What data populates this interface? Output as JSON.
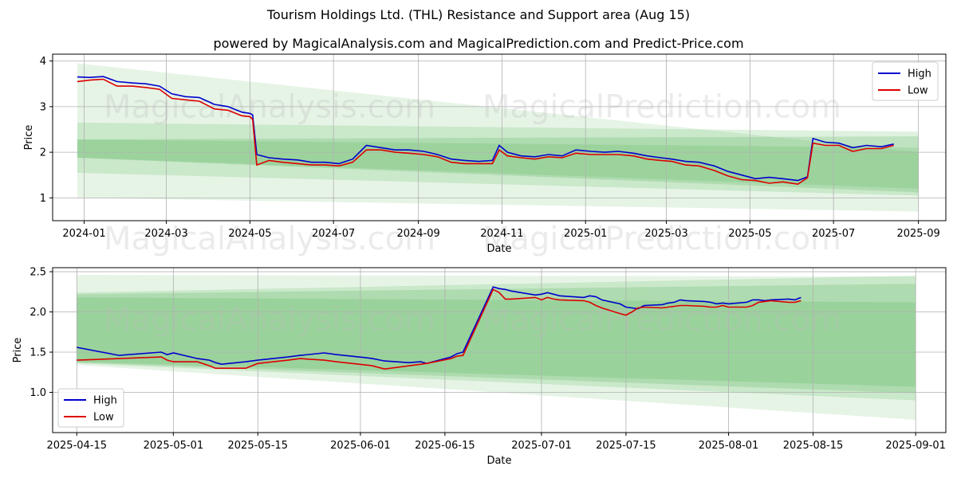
{
  "title": "Tourism Holdings Ltd. (THL) Resistance and Support area (Aug 15)",
  "subtitle": "powered by MagicalAnalysis.com and MagicalPrediction.com and Predict-Price.com",
  "watermarks": [
    "MagicalAnalysis.com",
    "MagicalPrediction.com"
  ],
  "colors": {
    "high": "#0000cc",
    "low": "#dd0000",
    "band": "#4caf50",
    "grid": "#b0b0b0"
  },
  "chart_data": [
    {
      "type": "line",
      "xlabel": "Date",
      "ylabel": "Price",
      "xlim": [
        "2023-12-09",
        "2025-09-21"
      ],
      "ylim": [
        0.5,
        4.15
      ],
      "xticks": [
        "2024-01",
        "2024-03",
        "2024-05",
        "2024-07",
        "2024-09",
        "2024-11",
        "2025-01",
        "2025-03",
        "2025-05",
        "2025-07",
        "2025-09"
      ],
      "yticks": [
        1,
        2,
        3,
        4
      ],
      "grid": true,
      "legend": "top-right",
      "bands": [
        {
          "x0": "2023-12-27",
          "x1": "2025-09-01",
          "y0_top": 3.95,
          "y0_bot": 1.0,
          "y1_top": 2.0,
          "y1_bot": 0.7,
          "opacity": 0.14
        },
        {
          "x0": "2023-12-27",
          "x1": "2025-09-01",
          "y0_top": 2.65,
          "y0_bot": 1.55,
          "y1_top": 2.45,
          "y1_bot": 1.05,
          "opacity": 0.18
        },
        {
          "x0": "2023-12-27",
          "x1": "2025-09-01",
          "y0_top": 2.28,
          "y0_bot": 1.88,
          "y1_top": 2.35,
          "y1_bot": 1.12,
          "opacity": 0.22
        },
        {
          "x0": "2023-12-27",
          "x1": "2025-09-01",
          "y0_top": 2.28,
          "y0_bot": 1.88,
          "y1_top": 2.1,
          "y1_bot": 1.2,
          "opacity": 0.18
        }
      ],
      "series": [
        {
          "name": "High",
          "x": [
            "2023-12-27",
            "2024-01-05",
            "2024-01-15",
            "2024-01-25",
            "2024-02-05",
            "2024-02-15",
            "2024-02-25",
            "2024-03-05",
            "2024-03-15",
            "2024-03-25",
            "2024-04-05",
            "2024-04-15",
            "2024-04-25",
            "2024-05-01",
            "2024-05-03",
            "2024-05-06",
            "2024-05-15",
            "2024-05-25",
            "2024-06-05",
            "2024-06-15",
            "2024-06-25",
            "2024-07-05",
            "2024-07-15",
            "2024-07-25",
            "2024-08-05",
            "2024-08-15",
            "2024-08-25",
            "2024-09-05",
            "2024-09-15",
            "2024-09-25",
            "2024-10-05",
            "2024-10-15",
            "2024-10-25",
            "2024-10-30",
            "2024-11-05",
            "2024-11-15",
            "2024-11-25",
            "2024-12-05",
            "2024-12-15",
            "2024-12-25",
            "2025-01-05",
            "2025-01-15",
            "2025-01-25",
            "2025-02-05",
            "2025-02-15",
            "2025-02-25",
            "2025-03-05",
            "2025-03-15",
            "2025-03-25",
            "2025-04-05",
            "2025-04-15",
            "2025-04-25",
            "2025-05-05",
            "2025-05-15",
            "2025-05-25",
            "2025-06-05",
            "2025-06-12",
            "2025-06-16",
            "2025-06-25",
            "2025-07-05",
            "2025-07-15",
            "2025-07-25",
            "2025-08-05",
            "2025-08-14"
          ],
          "values": [
            3.65,
            3.64,
            3.66,
            3.55,
            3.52,
            3.5,
            3.45,
            3.28,
            3.22,
            3.2,
            3.05,
            3.0,
            2.88,
            2.85,
            2.82,
            1.95,
            1.88,
            1.85,
            1.83,
            1.78,
            1.78,
            1.75,
            1.85,
            2.15,
            2.1,
            2.05,
            2.05,
            2.02,
            1.95,
            1.85,
            1.82,
            1.8,
            1.82,
            2.15,
            2.0,
            1.92,
            1.9,
            1.95,
            1.92,
            2.05,
            2.02,
            2.0,
            2.02,
            1.98,
            1.92,
            1.88,
            1.85,
            1.8,
            1.78,
            1.7,
            1.58,
            1.5,
            1.42,
            1.45,
            1.42,
            1.38,
            1.46,
            2.3,
            2.22,
            2.2,
            2.1,
            2.15,
            2.12,
            2.18
          ]
        },
        {
          "name": "Low",
          "x": [
            "2023-12-27",
            "2024-01-05",
            "2024-01-15",
            "2024-01-25",
            "2024-02-05",
            "2024-02-15",
            "2024-02-25",
            "2024-03-05",
            "2024-03-15",
            "2024-03-25",
            "2024-04-05",
            "2024-04-15",
            "2024-04-25",
            "2024-05-01",
            "2024-05-03",
            "2024-05-06",
            "2024-05-15",
            "2024-05-25",
            "2024-06-05",
            "2024-06-15",
            "2024-06-25",
            "2024-07-05",
            "2024-07-15",
            "2024-07-25",
            "2024-08-05",
            "2024-08-15",
            "2024-08-25",
            "2024-09-05",
            "2024-09-15",
            "2024-09-25",
            "2024-10-05",
            "2024-10-15",
            "2024-10-25",
            "2024-10-30",
            "2024-11-05",
            "2024-11-15",
            "2024-11-25",
            "2024-12-05",
            "2024-12-15",
            "2024-12-25",
            "2025-01-05",
            "2025-01-15",
            "2025-01-25",
            "2025-02-05",
            "2025-02-15",
            "2025-02-25",
            "2025-03-05",
            "2025-03-15",
            "2025-03-25",
            "2025-04-05",
            "2025-04-15",
            "2025-04-25",
            "2025-05-05",
            "2025-05-15",
            "2025-05-25",
            "2025-06-05",
            "2025-06-12",
            "2025-06-16",
            "2025-06-25",
            "2025-07-05",
            "2025-07-15",
            "2025-07-25",
            "2025-08-05",
            "2025-08-14"
          ],
          "values": [
            3.55,
            3.58,
            3.6,
            3.45,
            3.45,
            3.42,
            3.38,
            3.18,
            3.15,
            3.12,
            2.95,
            2.92,
            2.8,
            2.78,
            2.72,
            1.72,
            1.82,
            1.78,
            1.75,
            1.72,
            1.72,
            1.7,
            1.78,
            2.05,
            2.05,
            2.0,
            1.98,
            1.95,
            1.9,
            1.78,
            1.75,
            1.75,
            1.75,
            2.05,
            1.92,
            1.88,
            1.85,
            1.9,
            1.88,
            1.98,
            1.95,
            1.95,
            1.95,
            1.92,
            1.85,
            1.82,
            1.8,
            1.72,
            1.7,
            1.6,
            1.48,
            1.4,
            1.38,
            1.32,
            1.35,
            1.3,
            1.44,
            2.2,
            2.15,
            2.15,
            2.02,
            2.08,
            2.08,
            2.15
          ]
        }
      ]
    },
    {
      "type": "line",
      "xlabel": "Date",
      "ylabel": "Price",
      "xlim": [
        "2025-04-11",
        "2025-09-06"
      ],
      "ylim": [
        0.5,
        2.55
      ],
      "xticks": [
        "2025-04-15",
        "2025-05-01",
        "2025-05-15",
        "2025-06-01",
        "2025-06-15",
        "2025-07-01",
        "2025-07-15",
        "2025-08-01",
        "2025-08-15",
        "2025-09-01"
      ],
      "yticks": [
        1.0,
        1.5,
        2.0,
        2.5
      ],
      "grid": true,
      "legend": "bottom-left",
      "bands": [
        {
          "x0": "2025-04-15",
          "x1": "2025-09-01",
          "y0_top": 2.46,
          "y0_bot": 1.34,
          "y1_top": 2.44,
          "y1_bot": 0.66,
          "opacity": 0.14
        },
        {
          "x0": "2025-04-15",
          "x1": "2025-09-01",
          "y0_top": 2.24,
          "y0_bot": 1.36,
          "y1_top": 2.45,
          "y1_bot": 0.9,
          "opacity": 0.18
        },
        {
          "x0": "2025-04-15",
          "x1": "2025-09-01",
          "y0_top": 2.22,
          "y0_bot": 1.37,
          "y1_top": 2.35,
          "y1_bot": 0.99,
          "opacity": 0.22
        },
        {
          "x0": "2025-04-15",
          "x1": "2025-09-01",
          "y0_top": 2.18,
          "y0_bot": 1.38,
          "y1_top": 2.12,
          "y1_bot": 1.07,
          "opacity": 0.2
        }
      ],
      "series": [
        {
          "name": "High",
          "x": [
            "2025-04-15",
            "2025-04-22",
            "2025-04-29",
            "2025-04-30",
            "2025-05-01",
            "2025-05-05",
            "2025-05-07",
            "2025-05-08",
            "2025-05-09",
            "2025-05-13",
            "2025-05-15",
            "2025-05-20",
            "2025-05-22",
            "2025-05-26",
            "2025-05-28",
            "2025-06-02",
            "2025-06-03",
            "2025-06-05",
            "2025-06-09",
            "2025-06-11",
            "2025-06-12",
            "2025-06-16",
            "2025-06-17",
            "2025-06-18",
            "2025-06-23",
            "2025-06-24",
            "2025-06-25",
            "2025-06-26",
            "2025-06-30",
            "2025-07-01",
            "2025-07-02",
            "2025-07-03",
            "2025-07-04",
            "2025-07-08",
            "2025-07-09",
            "2025-07-10",
            "2025-07-11",
            "2025-07-14",
            "2025-07-15",
            "2025-07-16",
            "2025-07-17",
            "2025-07-18",
            "2025-07-21",
            "2025-07-22",
            "2025-07-23",
            "2025-07-24",
            "2025-07-25",
            "2025-07-28",
            "2025-07-29",
            "2025-07-30",
            "2025-07-31",
            "2025-08-01",
            "2025-08-04",
            "2025-08-05",
            "2025-08-06",
            "2025-08-07",
            "2025-08-08",
            "2025-08-11",
            "2025-08-12",
            "2025-08-13"
          ],
          "values": [
            1.56,
            1.46,
            1.5,
            1.47,
            1.49,
            1.42,
            1.4,
            1.37,
            1.35,
            1.38,
            1.4,
            1.44,
            1.46,
            1.49,
            1.47,
            1.43,
            1.42,
            1.39,
            1.37,
            1.38,
            1.36,
            1.44,
            1.48,
            1.5,
            2.31,
            2.29,
            2.28,
            2.26,
            2.21,
            2.22,
            2.24,
            2.22,
            2.2,
            2.18,
            2.2,
            2.19,
            2.15,
            2.1,
            2.06,
            2.05,
            2.04,
            2.08,
            2.09,
            2.11,
            2.12,
            2.15,
            2.14,
            2.13,
            2.12,
            2.1,
            2.11,
            2.1,
            2.12,
            2.15,
            2.15,
            2.14,
            2.15,
            2.16,
            2.15,
            2.18
          ]
        },
        {
          "name": "Low",
          "x": [
            "2025-04-15",
            "2025-04-22",
            "2025-04-29",
            "2025-04-30",
            "2025-05-01",
            "2025-05-05",
            "2025-05-07",
            "2025-05-08",
            "2025-05-09",
            "2025-05-13",
            "2025-05-15",
            "2025-05-20",
            "2025-05-22",
            "2025-05-26",
            "2025-05-28",
            "2025-06-02",
            "2025-06-03",
            "2025-06-05",
            "2025-06-09",
            "2025-06-11",
            "2025-06-12",
            "2025-06-16",
            "2025-06-17",
            "2025-06-18",
            "2025-06-23",
            "2025-06-24",
            "2025-06-25",
            "2025-06-26",
            "2025-06-30",
            "2025-07-01",
            "2025-07-02",
            "2025-07-03",
            "2025-07-04",
            "2025-07-08",
            "2025-07-09",
            "2025-07-10",
            "2025-07-11",
            "2025-07-14",
            "2025-07-15",
            "2025-07-16",
            "2025-07-17",
            "2025-07-18",
            "2025-07-21",
            "2025-07-22",
            "2025-07-23",
            "2025-07-24",
            "2025-07-25",
            "2025-07-28",
            "2025-07-29",
            "2025-07-30",
            "2025-07-31",
            "2025-08-01",
            "2025-08-04",
            "2025-08-05",
            "2025-08-06",
            "2025-08-07",
            "2025-08-08",
            "2025-08-11",
            "2025-08-12",
            "2025-08-13"
          ],
          "values": [
            1.4,
            1.42,
            1.44,
            1.4,
            1.38,
            1.38,
            1.33,
            1.3,
            1.3,
            1.3,
            1.36,
            1.4,
            1.42,
            1.4,
            1.38,
            1.34,
            1.33,
            1.29,
            1.33,
            1.35,
            1.36,
            1.42,
            1.45,
            1.46,
            2.28,
            2.24,
            2.16,
            2.16,
            2.18,
            2.15,
            2.18,
            2.16,
            2.15,
            2.14,
            2.12,
            2.08,
            2.05,
            1.98,
            1.96,
            2.0,
            2.05,
            2.06,
            2.05,
            2.06,
            2.07,
            2.08,
            2.08,
            2.07,
            2.06,
            2.06,
            2.08,
            2.06,
            2.06,
            2.08,
            2.12,
            2.13,
            2.14,
            2.12,
            2.12,
            2.14
          ]
        }
      ]
    }
  ]
}
